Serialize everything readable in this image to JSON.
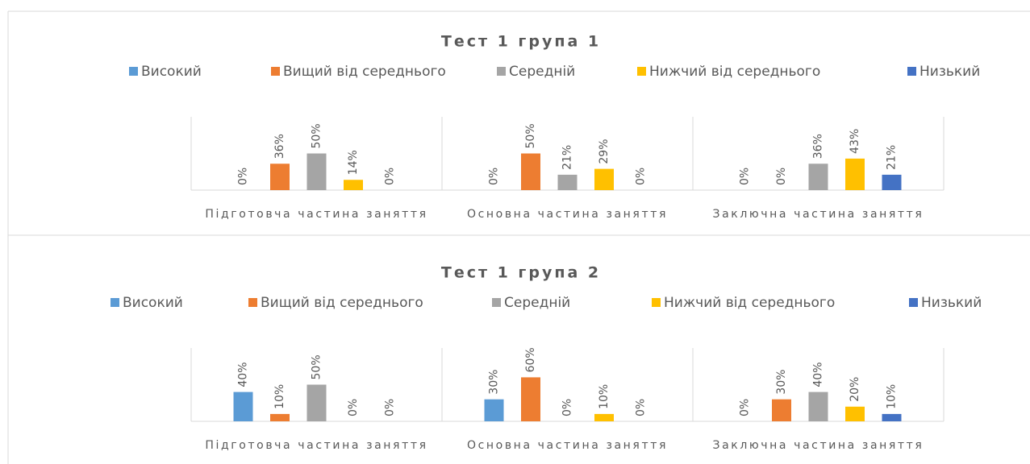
{
  "chart_data": [
    {
      "type": "bar",
      "title": "Тест 1 група 1",
      "categories": [
        "Підготовча частина заняття",
        "Основна частина заняття",
        "Заключна частина заняття"
      ],
      "ylim": [
        0,
        100
      ],
      "series": [
        {
          "name": "Високий",
          "color": "#5b9bd5",
          "values": [
            0,
            0,
            0
          ],
          "value_labels": [
            "0%",
            "0%",
            "0%"
          ]
        },
        {
          "name": "Вищий від середнього",
          "color": "#ed7d31",
          "values": [
            36,
            50,
            0
          ],
          "value_labels": [
            "36%",
            "50%",
            "0%"
          ]
        },
        {
          "name": "Середній",
          "color": "#a5a5a5",
          "values": [
            50,
            21,
            36
          ],
          "value_labels": [
            "50%",
            "21%",
            "36%"
          ]
        },
        {
          "name": "Нижчий від середнього",
          "color": "#ffc000",
          "values": [
            14,
            29,
            43
          ],
          "value_labels": [
            "14%",
            "29%",
            "43%"
          ]
        },
        {
          "name": "Низький",
          "color": "#4472c4",
          "values": [
            0,
            0,
            21
          ],
          "value_labels": [
            "0%",
            "0%",
            "21%"
          ]
        }
      ]
    },
    {
      "type": "bar",
      "title": "Тест 1 група 2",
      "categories": [
        "Підготовча частина заняття",
        "Основна частина заняття",
        "Заключна частина заняття"
      ],
      "ylim": [
        0,
        100
      ],
      "series": [
        {
          "name": "Високий",
          "color": "#5b9bd5",
          "values": [
            40,
            30,
            0
          ],
          "value_labels": [
            "40%",
            "30%",
            "0%"
          ]
        },
        {
          "name": "Вищий від середнього",
          "color": "#ed7d31",
          "values": [
            10,
            60,
            30
          ],
          "value_labels": [
            "10%",
            "60%",
            "30%"
          ]
        },
        {
          "name": "Середній",
          "color": "#a5a5a5",
          "values": [
            50,
            0,
            40
          ],
          "value_labels": [
            "50%",
            "0%",
            "40%"
          ]
        },
        {
          "name": "Нижчий від середнього",
          "color": "#ffc000",
          "values": [
            0,
            10,
            20
          ],
          "value_labels": [
            "0%",
            "10%",
            "20%"
          ]
        },
        {
          "name": "Низький",
          "color": "#4472c4",
          "values": [
            0,
            0,
            10
          ],
          "value_labels": [
            "0%",
            "0%",
            "10%"
          ]
        }
      ]
    }
  ]
}
